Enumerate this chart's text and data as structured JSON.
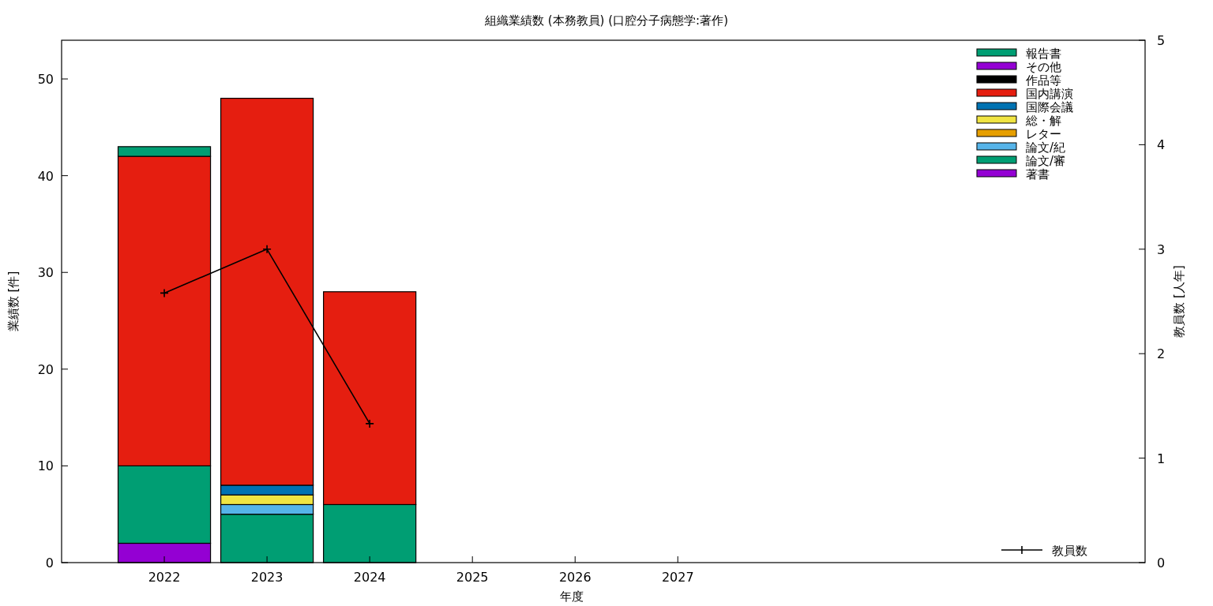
{
  "chart_data": {
    "type": "bar",
    "title": "組織業績数 (本務教員) (口腔分子病態学:著作)",
    "xlabel": "年度",
    "ylabel": "業績数 [件]",
    "y2label": "教員数 [人年]",
    "x": [
      2022,
      2023,
      2024
    ],
    "xlim": [
      2021,
      2031.55
    ],
    "xticks": [
      2022,
      2023,
      2024,
      2025,
      2026,
      2027
    ],
    "stacked": true,
    "legend": "right",
    "ylim": [
      0,
      54
    ],
    "yticks": [
      0,
      10,
      20,
      30,
      40,
      50
    ],
    "y2lim": [
      0,
      5
    ],
    "y2ticks": [
      0,
      1,
      2,
      3,
      4,
      5
    ],
    "series": [
      {
        "name": "著書",
        "color": "#9400d3",
        "values": [
          2,
          0,
          0
        ]
      },
      {
        "name": "論文/審",
        "color": "#009e73",
        "values": [
          8,
          5,
          6
        ]
      },
      {
        "name": "論文/紀",
        "color": "#56b4e9",
        "values": [
          0,
          1,
          0
        ]
      },
      {
        "name": "レター",
        "color": "#e69f00",
        "values": [
          0,
          0,
          0
        ]
      },
      {
        "name": "総・解",
        "color": "#f0e442",
        "values": [
          0,
          1,
          0
        ]
      },
      {
        "name": "国際会議",
        "color": "#0072b2",
        "values": [
          0,
          1,
          0
        ]
      },
      {
        "name": "国内講演",
        "color": "#e51e10",
        "values": [
          32,
          40,
          22
        ]
      },
      {
        "name": "作品等",
        "color": "#000000",
        "values": [
          0,
          0,
          0
        ]
      },
      {
        "name": "その他",
        "color": "#9400d3",
        "values": [
          0,
          0,
          0
        ]
      },
      {
        "name": "報告書",
        "color": "#009e73",
        "values": [
          1,
          0,
          0
        ]
      },
      {
        "name": "教員数",
        "type": "line",
        "axis": "y2",
        "marker": "cross",
        "color": "#000000",
        "values": [
          2.58,
          3.0,
          1.33
        ]
      }
    ]
  }
}
